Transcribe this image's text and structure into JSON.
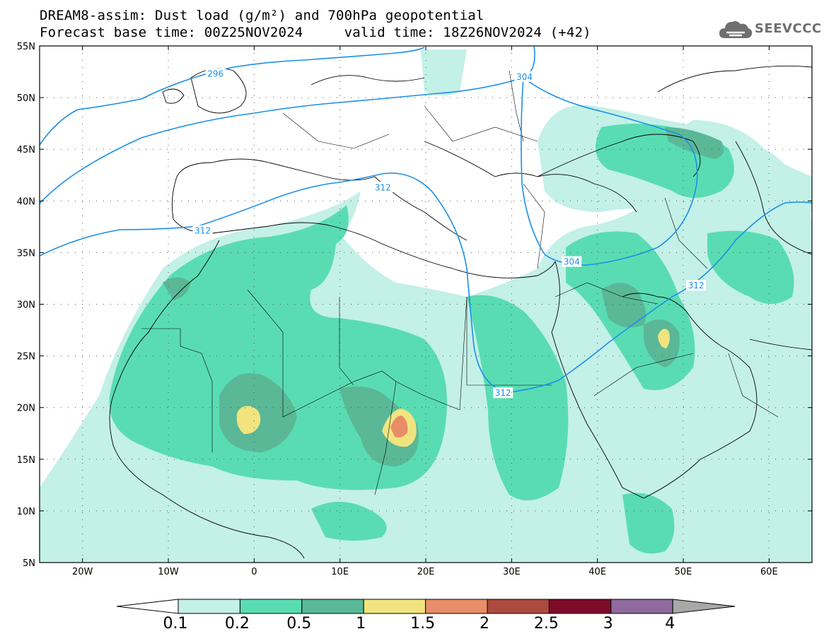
{
  "header": {
    "title_line1": "DREAM8-assim: Dust load (g/m²) and 700hPa geopotential",
    "title_line2": "Forecast base time: 00Z25NOV2024     valid time: 18Z26NOV2024 (+42)"
  },
  "logo": {
    "name": "seevccc-logo",
    "text": "SEEVCCC",
    "color": "#6f6f6f"
  },
  "map": {
    "lon_range": [
      -25,
      65
    ],
    "lat_range": [
      5,
      55
    ],
    "lon_ticks": [
      {
        "value": -20,
        "label": "20W"
      },
      {
        "value": -10,
        "label": "10W"
      },
      {
        "value": 0,
        "label": "0"
      },
      {
        "value": 10,
        "label": "10E"
      },
      {
        "value": 20,
        "label": "20E"
      },
      {
        "value": 30,
        "label": "30E"
      },
      {
        "value": 40,
        "label": "40E"
      },
      {
        "value": 50,
        "label": "50E"
      },
      {
        "value": 60,
        "label": "60E"
      }
    ],
    "lat_ticks": [
      {
        "value": 55,
        "label": "55N"
      },
      {
        "value": 50,
        "label": "50N"
      },
      {
        "value": 45,
        "label": "45N"
      },
      {
        "value": 40,
        "label": "40N"
      },
      {
        "value": 35,
        "label": "35N"
      },
      {
        "value": 30,
        "label": "30N"
      },
      {
        "value": 25,
        "label": "25N"
      },
      {
        "value": 20,
        "label": "20N"
      },
      {
        "value": 15,
        "label": "15N"
      },
      {
        "value": 10,
        "label": "10N"
      },
      {
        "value": 5,
        "label": "5N"
      }
    ],
    "contour_color": "#1a8fe8",
    "contour_labels": [
      {
        "text": "296",
        "lon": -4.5,
        "lat": 52.3
      },
      {
        "text": "304",
        "lon": 31.5,
        "lat": 52.0
      },
      {
        "text": "312",
        "lon": 15.0,
        "lat": 41.3
      },
      {
        "text": "312",
        "lon": -6.0,
        "lat": 37.1
      },
      {
        "text": "304",
        "lon": 37.0,
        "lat": 34.1
      },
      {
        "text": "312",
        "lon": 51.5,
        "lat": 31.8
      },
      {
        "text": "312",
        "lon": 29.0,
        "lat": 21.4
      }
    ]
  },
  "colorbar": {
    "colors": [
      "#c3f0e7",
      "#5adcb3",
      "#5ab897",
      "#f1e47f",
      "#e78e68",
      "#ac4a40",
      "#7f0b2a",
      "#8f6a9f",
      "#a8a8a8"
    ],
    "labels": [
      "0.1",
      "0.2",
      "0.5",
      "1",
      "1.5",
      "2",
      "2.5",
      "3",
      "4"
    ]
  }
}
